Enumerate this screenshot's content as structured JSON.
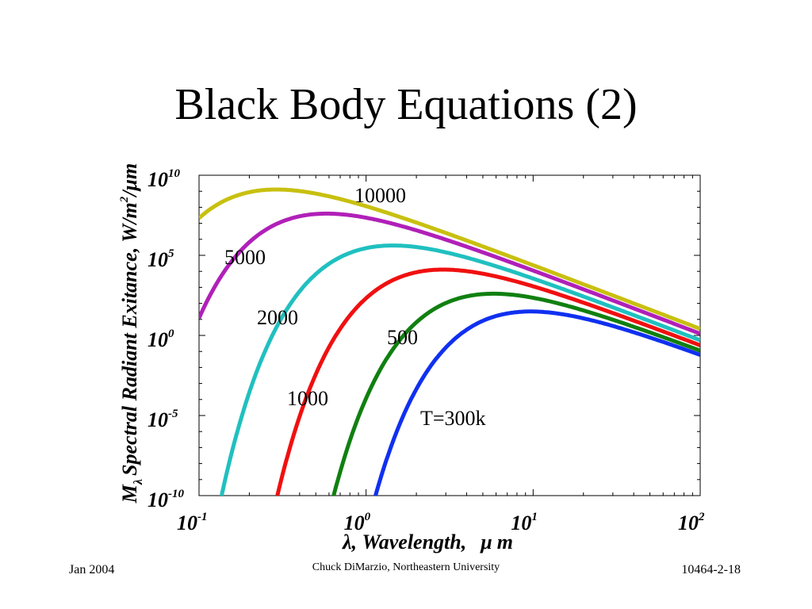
{
  "slide": {
    "title": "Black Body Equations (2)",
    "footer_left": "Jan 2004",
    "footer_center": "Chuck DiMarzio, Northeastern University",
    "footer_right": "10464-2-18"
  },
  "chart_data": {
    "type": "line",
    "title": "",
    "xlabel": ", Wavelength,",
    "xlabel_symbol": "λ",
    "xlabel_unit_symbol": "μ",
    "xlabel_unit": "m",
    "ylabel": "Spectral Radiant Exitance,",
    "ylabel_symbol": "M",
    "ylabel_subscript": "λ",
    "ylabel_unit": "W/m",
    "ylabel_unit_sup": "2",
    "ylabel_unit_tail": "/μm",
    "x_scale": "log",
    "y_scale": "log",
    "xlim": [
      0.1,
      100
    ],
    "ylim": [
      1e-10,
      10000000000.0
    ],
    "x_ticks": [
      {
        "base": "10",
        "exp": "-1"
      },
      {
        "base": "10",
        "exp": "0"
      },
      {
        "base": "10",
        "exp": "1"
      },
      {
        "base": "10",
        "exp": "2"
      }
    ],
    "y_ticks": [
      {
        "base": "10",
        "exp": "-10"
      },
      {
        "base": "10",
        "exp": "-5"
      },
      {
        "base": "10",
        "exp": "0"
      },
      {
        "base": "10",
        "exp": "5"
      },
      {
        "base": "10",
        "exp": "10"
      }
    ],
    "grid": false,
    "series": [
      {
        "name": "10000",
        "temperature": 10000,
        "color": "#c8c010"
      },
      {
        "name": "5000",
        "temperature": 5000,
        "color": "#b020b8"
      },
      {
        "name": "2000",
        "temperature": 2000,
        "color": "#20c0c0"
      },
      {
        "name": "1000",
        "temperature": 1000,
        "color": "#f01010"
      },
      {
        "name": "500",
        "temperature": 500,
        "color": "#108010"
      },
      {
        "name": "T=300k",
        "temperature": 300,
        "color": "#1030f0"
      }
    ]
  }
}
